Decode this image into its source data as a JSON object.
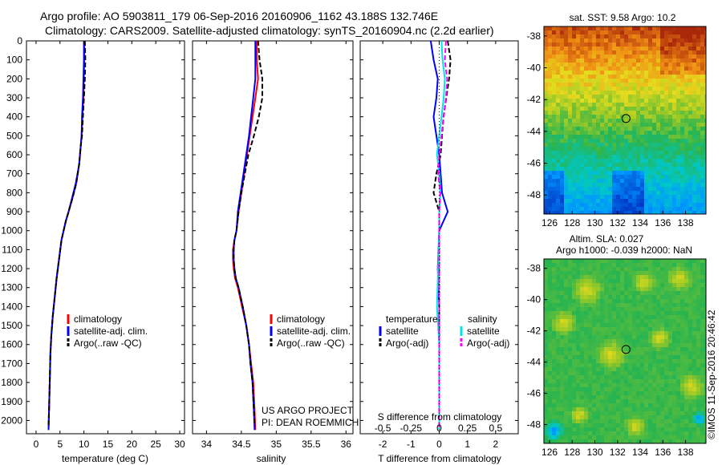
{
  "header": {
    "line1": "Argo profile: AO 5903811_179 06-Sep-2016 20160906_1162 43.188S 132.746E",
    "line2": "Climatology: CARS2009. Satellite-adjusted climatology: synTS_20160904.nc (2.2d earlier)"
  },
  "panels": {
    "sst_title": "sat. SST: 9.58 Argo: 10.2",
    "sla_title1": "Altim. SLA: 0.027",
    "sla_title2": "Argo h1000: -0.039 h2000: NaN",
    "imos_stamp": "©IMOS 11-Sep-2016 20:46:42",
    "project_line1": "US ARGO PROJECT",
    "project_line2": "PI: DEAN ROEMMICH"
  },
  "colors": {
    "climatology": "#ff0000",
    "satellite": "#0000ff",
    "argo": "#000000",
    "satellite_s": "#00e5e5",
    "argo_s": "#ff00ff"
  },
  "chart_data": [
    {
      "type": "line",
      "id": "temperature",
      "xlabel": "temperature (deg C)",
      "ylabel": "",
      "xlim": [
        -2,
        31
      ],
      "ylim": [
        2070,
        0
      ],
      "xticks": [
        0,
        5,
        10,
        15,
        20,
        25,
        30
      ],
      "yticks": [
        0,
        100,
        200,
        300,
        400,
        500,
        600,
        700,
        800,
        900,
        1000,
        1100,
        1200,
        1300,
        1400,
        1500,
        1600,
        1700,
        1800,
        1900,
        2000
      ],
      "legend": [
        "climatology",
        "satellite-adj. clim.",
        "Argo(..raw -QC)"
      ],
      "series": [
        {
          "name": "climatology",
          "x": [
            10.1,
            10.1,
            10.0,
            9.9,
            9.7,
            9.5,
            9.3,
            9.0,
            8.4,
            7.6,
            6.8,
            6.2,
            5.3,
            4.8,
            4.3,
            3.9,
            3.5,
            3.2,
            3.0,
            2.9,
            2.8,
            2.7,
            2.6
          ],
          "y": [
            0,
            100,
            200,
            300,
            400,
            500,
            560,
            650,
            750,
            830,
            900,
            950,
            1050,
            1150,
            1250,
            1350,
            1450,
            1550,
            1650,
            1750,
            1850,
            1950,
            2050
          ]
        },
        {
          "name": "satellite-adj. clim.",
          "x": [
            10.0,
            10.0,
            9.9,
            9.8,
            9.6,
            9.5,
            9.3,
            9.0,
            8.3,
            7.5,
            6.8,
            6.2,
            5.3,
            4.8,
            4.3,
            3.9,
            3.5,
            3.2,
            3.0,
            2.9,
            2.8,
            2.7,
            2.6
          ],
          "y": [
            0,
            100,
            200,
            300,
            400,
            500,
            560,
            650,
            750,
            830,
            900,
            950,
            1050,
            1150,
            1250,
            1350,
            1450,
            1550,
            1650,
            1750,
            1850,
            1950,
            2050
          ]
        },
        {
          "name": "Argo(..raw -QC)",
          "x": [
            10.2,
            10.3,
            10.2,
            10.0,
            9.8,
            9.6,
            9.3,
            9.0,
            8.4,
            7.6,
            6.8,
            6.2,
            5.3,
            4.8,
            4.3,
            3.9,
            3.5,
            3.2,
            3.0,
            2.9,
            2.8,
            2.7,
            2.6
          ],
          "y": [
            0,
            100,
            200,
            300,
            400,
            500,
            560,
            650,
            750,
            830,
            900,
            950,
            1050,
            1150,
            1250,
            1350,
            1450,
            1550,
            1650,
            1750,
            1850,
            1950,
            2030
          ]
        }
      ]
    },
    {
      "type": "line",
      "id": "salinity",
      "xlabel": "salinity",
      "ylabel": "",
      "xlim": [
        33.8,
        36.1
      ],
      "ylim": [
        2070,
        0
      ],
      "xticks": [
        34,
        34.5,
        35,
        35.5,
        36
      ],
      "legend": [
        "climatology",
        "satellite-adj. clim.",
        "Argo(..raw -QC)"
      ],
      "series": [
        {
          "name": "climatology",
          "x": [
            34.72,
            34.72,
            34.74,
            34.7,
            34.66,
            34.62,
            34.58,
            34.54,
            34.5,
            34.46,
            34.43,
            34.4,
            34.38,
            34.38,
            34.39,
            34.41,
            34.45,
            34.51,
            34.57,
            34.61,
            34.64,
            34.67,
            34.69,
            34.7
          ],
          "y": [
            0,
            100,
            200,
            300,
            400,
            500,
            600,
            700,
            800,
            900,
            1000,
            1050,
            1100,
            1150,
            1200,
            1250,
            1300,
            1400,
            1500,
            1600,
            1700,
            1800,
            1950,
            2050
          ]
        },
        {
          "name": "satellite-adj. clim.",
          "x": [
            34.7,
            34.7,
            34.7,
            34.67,
            34.64,
            34.61,
            34.57,
            34.53,
            34.49,
            34.45,
            34.43,
            34.4,
            34.39,
            34.39,
            34.4,
            34.42,
            34.46,
            34.52,
            34.57,
            34.61,
            34.63,
            34.66,
            34.68,
            34.69
          ],
          "y": [
            0,
            100,
            200,
            300,
            400,
            500,
            600,
            700,
            800,
            900,
            1000,
            1050,
            1100,
            1150,
            1200,
            1250,
            1300,
            1400,
            1500,
            1600,
            1700,
            1800,
            1950,
            2050
          ]
        },
        {
          "name": "Argo(..raw -QC)",
          "x": [
            34.74,
            34.76,
            34.8,
            34.8,
            34.75,
            34.68,
            34.6,
            34.55,
            34.5,
            34.46,
            34.43,
            34.4,
            34.39,
            34.39,
            34.4,
            34.42,
            34.46,
            34.52,
            34.57,
            34.61,
            34.63,
            34.66,
            34.68,
            34.69
          ],
          "y": [
            0,
            100,
            200,
            300,
            400,
            500,
            600,
            700,
            800,
            900,
            1000,
            1050,
            1100,
            1150,
            1200,
            1250,
            1300,
            1400,
            1500,
            1600,
            1700,
            1800,
            1950,
            2030
          ]
        }
      ]
    },
    {
      "type": "line",
      "id": "difference",
      "xlabel": "T difference from climatology",
      "xlabel_top": "S difference from climatology",
      "xlim": [
        -2.8,
        2.8
      ],
      "ylim": [
        2070,
        0
      ],
      "xticks": [
        -2,
        -1,
        0,
        1,
        2
      ],
      "xticks_top": [
        -0.5,
        -0.25,
        0,
        0.25,
        0.5
      ],
      "legend_temperature_title": "temperature",
      "legend_salinity_title": "salinity",
      "legend": [
        "satellite",
        "Argo(-adj)",
        "satellite",
        "Argo(-adj)"
      ],
      "series": [
        {
          "name": "temperature satellite",
          "x": [
            -0.3,
            -0.2,
            -0.05,
            -0.1,
            -0.2,
            -0.1,
            0.0,
            0.05,
            0.1,
            0.3,
            0.0,
            -0.05,
            0.0,
            0.0,
            0.0,
            0.0,
            0.0,
            0.0
          ],
          "y": [
            0,
            100,
            200,
            300,
            400,
            500,
            600,
            700,
            800,
            900,
            1000,
            1200,
            1400,
            1600,
            1700,
            1800,
            1900,
            2050
          ]
        },
        {
          "name": "temperature Argo(-adj)",
          "x": [
            0.3,
            0.4,
            0.35,
            0.25,
            0.15,
            0.1,
            0.05,
            -0.1,
            -0.2,
            0.0,
            0.0,
            0.0,
            0.0,
            0.0,
            0.0,
            0.0,
            0.0,
            0.0
          ],
          "y": [
            0,
            100,
            200,
            300,
            400,
            500,
            600,
            700,
            800,
            900,
            1000,
            1200,
            1400,
            1600,
            1700,
            1800,
            1900,
            2050
          ]
        },
        {
          "name": "salinity satellite",
          "x": [
            0.02,
            0.03,
            0.05,
            0.04,
            0.02,
            0.0,
            -0.02,
            0.0,
            0.01,
            0.0,
            0.0,
            -0.01,
            -0.02,
            0.0,
            0.0,
            0.0,
            0.0,
            0.0
          ],
          "y": [
            0,
            100,
            200,
            300,
            400,
            500,
            600,
            700,
            800,
            900,
            1000,
            1200,
            1400,
            1600,
            1700,
            1800,
            1900,
            2050
          ]
        },
        {
          "name": "salinity Argo(-adj)",
          "x": [
            0.06,
            0.05,
            0.07,
            0.06,
            0.04,
            0.02,
            0.0,
            -0.01,
            0.01,
            0.0,
            0.0,
            0.0,
            0.0,
            0.0,
            0.0,
            0.0,
            0.0,
            0.0
          ],
          "y": [
            0,
            100,
            200,
            300,
            400,
            500,
            600,
            700,
            800,
            900,
            1000,
            1200,
            1400,
            1600,
            1700,
            1800,
            1900,
            2050
          ]
        }
      ]
    },
    {
      "type": "heatmap",
      "id": "sst_map",
      "xlim": [
        125.5,
        139.8
      ],
      "ylim": [
        -49.2,
        -37.4
      ],
      "xticks": [
        126,
        128,
        130,
        132,
        134,
        136,
        138
      ],
      "yticks": [
        -38,
        -40,
        -42,
        -44,
        -46,
        -48
      ],
      "marker": {
        "lon": 132.746,
        "lat": -43.188
      }
    },
    {
      "type": "heatmap",
      "id": "sla_map",
      "xlim": [
        125.5,
        139.8
      ],
      "ylim": [
        -49.2,
        -37.4
      ],
      "xticks": [
        126,
        128,
        130,
        132,
        134,
        136,
        138
      ],
      "yticks": [
        -38,
        -40,
        -42,
        -44,
        -46,
        -48
      ],
      "marker": {
        "lon": 132.746,
        "lat": -43.188
      }
    }
  ]
}
